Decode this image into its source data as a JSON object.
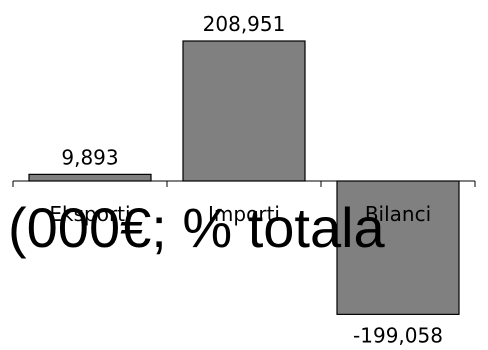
{
  "chart_data": {
    "type": "bar",
    "categories": [
      "Eksporti",
      "Importi",
      "Bilanci"
    ],
    "values": [
      9893,
      208951,
      -199058
    ],
    "data_labels": [
      "9,893",
      "208,951",
      "-199,058"
    ],
    "title": "",
    "xlabel": "",
    "ylabel": "",
    "ylim": [
      -220000,
      220000
    ],
    "grid": false,
    "legend": "none",
    "overlay_text": "(000€; % totala",
    "bar_color": "#808080",
    "edge_color": "#000000"
  }
}
